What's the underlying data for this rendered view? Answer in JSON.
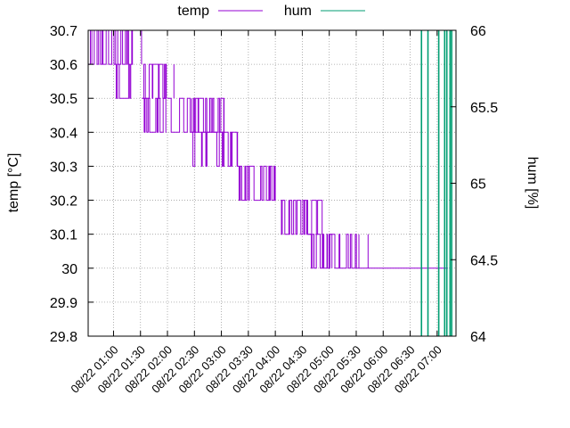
{
  "chart_data": {
    "type": "line",
    "xlabel": "",
    "ylabel": "temp [°C]",
    "y2label": "hum [%]",
    "ylim": [
      29.8,
      30.7
    ],
    "y2lim": [
      64,
      66
    ],
    "yticks": [
      "29.8",
      "29.9",
      "30",
      "30.1",
      "30.2",
      "30.3",
      "30.4",
      "30.5",
      "30.6",
      "30.7"
    ],
    "y2ticks": [
      "64",
      "64.5",
      "65",
      "65.5",
      "66"
    ],
    "xlim_hours": [
      0.53,
      7.35
    ],
    "xticks": [
      {
        "label": "08/22 01:00",
        "h": 1.0
      },
      {
        "label": "08/22 01:30",
        "h": 1.5
      },
      {
        "label": "08/22 02:00",
        "h": 2.0
      },
      {
        "label": "08/22 02:30",
        "h": 2.5
      },
      {
        "label": "08/22 03:00",
        "h": 3.0
      },
      {
        "label": "08/22 03:30",
        "h": 3.5
      },
      {
        "label": "08/22 04:00",
        "h": 4.0
      },
      {
        "label": "08/22 04:30",
        "h": 4.5
      },
      {
        "label": "08/22 05:00",
        "h": 5.0
      },
      {
        "label": "08/22 05:30",
        "h": 5.5
      },
      {
        "label": "08/22 06:00",
        "h": 6.0
      },
      {
        "label": "08/22 06:30",
        "h": 6.5
      },
      {
        "label": "08/22 07:00",
        "h": 7.0
      }
    ],
    "grid": true,
    "legend_position": "top",
    "series": [
      {
        "name": "temp",
        "color": "#9400d3",
        "axis": "left",
        "segments": [
          {
            "h0": 0.53,
            "h1": 1.35,
            "base": 30.6,
            "alt": 30.7
          },
          {
            "h0": 1.0,
            "h1": 1.35,
            "base": 30.6,
            "alt": 30.5
          },
          {
            "h0": 1.53,
            "h1": 1.98,
            "base": 30.5,
            "alt": 30.6
          },
          {
            "h0": 1.53,
            "h1": 1.98,
            "base": 30.5,
            "alt": 30.4
          },
          {
            "h0": 2.0,
            "h1": 2.45,
            "base": 30.5,
            "alt": 30.4
          },
          {
            "h0": 2.45,
            "h1": 3.05,
            "base": 30.4,
            "alt": 30.5
          },
          {
            "h0": 2.45,
            "h1": 3.05,
            "base": 30.4,
            "alt": 30.3
          },
          {
            "h0": 3.0,
            "h1": 3.3,
            "base": 30.3,
            "alt": 30.4
          },
          {
            "h0": 3.3,
            "h1": 3.75,
            "base": 30.3,
            "alt": 30.2
          },
          {
            "h0": 3.75,
            "h1": 4.0,
            "base": 30.2,
            "alt": 30.3
          },
          {
            "h0": 4.1,
            "h1": 4.6,
            "base": 30.2,
            "alt": 30.1
          },
          {
            "h0": 4.6,
            "h1": 4.9,
            "base": 30.1,
            "alt": 30.2
          },
          {
            "h0": 4.6,
            "h1": 5.05,
            "base": 30.1,
            "alt": 30.0
          },
          {
            "h0": 5.0,
            "h1": 5.55,
            "base": 30.0,
            "alt": 30.1
          },
          {
            "h0": 5.55,
            "h1": 7.2,
            "base": 30.0,
            "alt": 30.0
          }
        ],
        "spikes": [
          {
            "h": 1.05,
            "from": 30.6,
            "to": 30.5
          },
          {
            "h": 1.28,
            "from": 30.6,
            "to": 30.7
          },
          {
            "h": 1.52,
            "from": 30.6,
            "to": 30.7
          },
          {
            "h": 1.82,
            "from": 30.5,
            "to": 30.4
          },
          {
            "h": 2.12,
            "from": 30.5,
            "to": 30.6
          },
          {
            "h": 2.72,
            "from": 30.4,
            "to": 30.3
          },
          {
            "h": 3.35,
            "from": 30.3,
            "to": 30.2
          },
          {
            "h": 4.25,
            "from": 30.2,
            "to": 30.1
          },
          {
            "h": 4.9,
            "from": 30.1,
            "to": 30.0
          },
          {
            "h": 5.72,
            "from": 30.0,
            "to": 30.1
          }
        ]
      },
      {
        "name": "hum",
        "color": "#009e73",
        "axis": "right",
        "spikes": [
          {
            "h": 6.71,
            "from": 64,
            "to": 66
          },
          {
            "h": 6.83,
            "from": 64,
            "to": 66
          },
          {
            "h": 7.03,
            "from": 64,
            "to": 66
          },
          {
            "h": 7.14,
            "from": 64,
            "to": 66
          },
          {
            "h": 7.18,
            "from": 64,
            "to": 66
          },
          {
            "h": 7.24,
            "from": 64,
            "to": 66
          },
          {
            "h": 7.27,
            "from": 64,
            "to": 66
          }
        ]
      }
    ]
  }
}
